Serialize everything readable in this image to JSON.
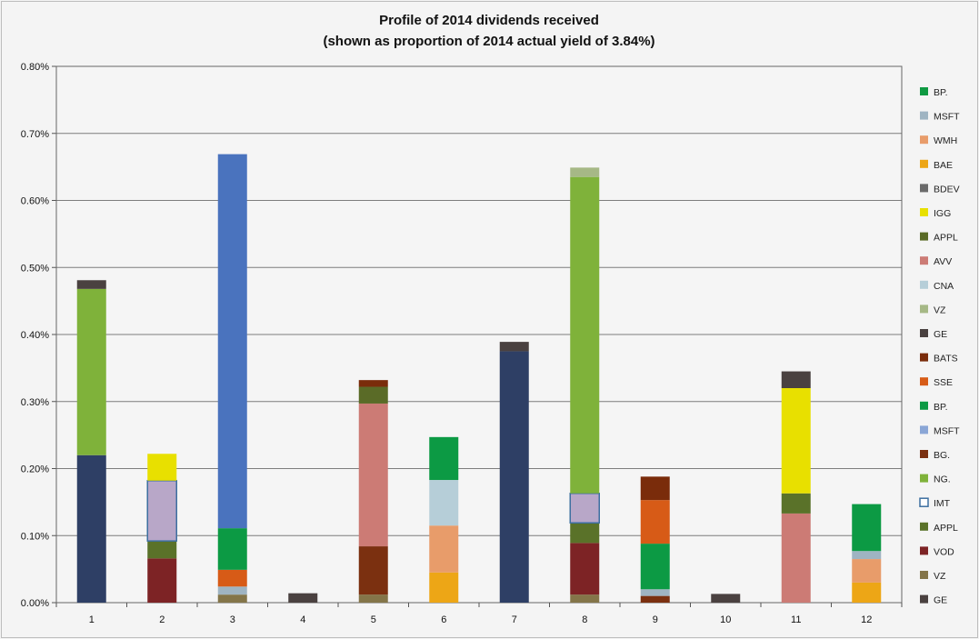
{
  "chart_data": {
    "type": "bar",
    "stacked": true,
    "title": "Profile of 2014 dividends received",
    "subtitle": "(shown as proportion of 2014 actual yield of  3.84%)",
    "xlabel": "",
    "ylabel": "",
    "ylim": [
      0,
      0.8
    ],
    "y_ticks": [
      "0.00%",
      "0.10%",
      "0.20%",
      "0.30%",
      "0.40%",
      "0.50%",
      "0.60%",
      "0.70%",
      "0.80%"
    ],
    "categories": [
      "1",
      "2",
      "3",
      "4",
      "5",
      "6",
      "7",
      "8",
      "9",
      "10",
      "11",
      "12"
    ],
    "grid": "horizontal",
    "legend_position": "right",
    "series": [
      {
        "name": "GE",
        "color": "#4a4140",
        "values": [
          0.013,
          0,
          0,
          0.014,
          0,
          0,
          0.014,
          0,
          0,
          0.013,
          0.025,
          0
        ]
      },
      {
        "name": "VZ",
        "color": "#847549",
        "values": [
          0,
          0,
          0.012,
          0,
          0.012,
          0,
          0,
          0.012,
          0,
          0,
          0,
          0
        ]
      },
      {
        "name": "VOD",
        "color": "#7d2325",
        "values": [
          0,
          0.066,
          0,
          0,
          0,
          0,
          0,
          0.077,
          0,
          0,
          0,
          0
        ]
      },
      {
        "name": "APPL",
        "color": "#5a7229",
        "values": [
          0,
          0.026,
          0,
          0,
          0,
          0,
          0,
          0.03,
          0,
          0,
          0.03,
          0
        ]
      },
      {
        "name": "IMT",
        "color": "#b8a7c8",
        "values": [
          0,
          0.09,
          0,
          0,
          0,
          0,
          0,
          0.044,
          0,
          0,
          0,
          0
        ]
      },
      {
        "name": "NG.",
        "color": "#7fb23a",
        "values": [
          0.248,
          0,
          0,
          0,
          0,
          0,
          0,
          0.472,
          0,
          0,
          0,
          0
        ]
      },
      {
        "name": "BG.",
        "color": "#7b3010",
        "values": [
          0,
          0,
          0,
          0,
          0.072,
          0,
          0,
          0,
          0.01,
          0,
          0,
          0
        ]
      },
      {
        "name": "MSFT",
        "color": "#4a73be",
        "values": [
          0,
          0,
          0.558,
          0,
          0,
          0,
          0,
          0,
          0,
          0,
          0,
          0
        ]
      },
      {
        "name": "BP.",
        "color": "#0c9a44",
        "values": [
          0,
          0,
          0.062,
          0,
          0,
          0.064,
          0,
          0,
          0.068,
          0,
          0,
          0.07
        ]
      },
      {
        "name": "SSE",
        "color": "#d75b17",
        "values": [
          0,
          0,
          0.025,
          0,
          0,
          0,
          0,
          0,
          0.065,
          0,
          0,
          0
        ]
      },
      {
        "name": "BATS",
        "color": "#7a2c0b",
        "values": [
          0,
          0,
          0,
          0,
          0.01,
          0,
          0,
          0,
          0.035,
          0,
          0,
          0
        ]
      },
      {
        "name": "GE",
        "color": "#2e3f65",
        "values": [
          0.22,
          0,
          0,
          0,
          0,
          0,
          0.375,
          0,
          0,
          0,
          0,
          0
        ]
      },
      {
        "name": "VZ",
        "color": "#a6b886",
        "values": [
          0,
          0,
          0,
          0,
          0,
          0,
          0,
          0.014,
          0,
          0,
          0,
          0
        ]
      },
      {
        "name": "CNA",
        "color": "#b6ced8",
        "values": [
          0,
          0,
          0,
          0,
          0,
          0.068,
          0,
          0,
          0,
          0,
          0,
          0
        ]
      },
      {
        "name": "AVV",
        "color": "#cc7b75",
        "values": [
          0,
          0,
          0,
          0,
          0.213,
          0,
          0,
          0,
          0,
          0,
          0.133,
          0
        ]
      },
      {
        "name": "APPL",
        "color": "#5a6b27",
        "values": [
          0,
          0,
          0,
          0,
          0.025,
          0,
          0,
          0,
          0,
          0,
          0,
          0
        ]
      },
      {
        "name": "IGG",
        "color": "#e8e000",
        "values": [
          0,
          0.04,
          0,
          0,
          0,
          0,
          0,
          0,
          0,
          0,
          0.157,
          0
        ]
      },
      {
        "name": "BDEV",
        "color": "#6b6b6b",
        "values": [
          0,
          0,
          0,
          0,
          0,
          0,
          0,
          0,
          0,
          0,
          0.025,
          0
        ]
      },
      {
        "name": "BAE",
        "color": "#eda616",
        "values": [
          0,
          0,
          0,
          0,
          0,
          0.045,
          0,
          0,
          0,
          0,
          0,
          0.03
        ]
      },
      {
        "name": "WMH",
        "color": "#e89c6a",
        "values": [
          0,
          0,
          0,
          0,
          0,
          0.07,
          0,
          0,
          0,
          0,
          0,
          0.035
        ]
      },
      {
        "name": "MSFT",
        "color": "#9fb4c2",
        "values": [
          0,
          0,
          0.012,
          0,
          0,
          0,
          0,
          0,
          0.01,
          0,
          0,
          0.012
        ]
      },
      {
        "name": "BP.",
        "color": "#0f9a42",
        "values": [
          0,
          0,
          0,
          0,
          0,
          0,
          0,
          0,
          0,
          0,
          0,
          0
        ]
      }
    ],
    "stack_order": [
      [
        11,
        5,
        0
      ],
      [
        2,
        3,
        4,
        16
      ],
      [
        1,
        0,
        20,
        9,
        8,
        7
      ],
      [
        0
      ],
      [
        1,
        6,
        14,
        15,
        10
      ],
      [
        18,
        19,
        13,
        4,
        8
      ],
      [
        11,
        1,
        0
      ],
      [
        1,
        2,
        3,
        4,
        5,
        12
      ],
      [
        6,
        20,
        8,
        9,
        10
      ],
      [
        0
      ],
      [
        13,
        14,
        3,
        16,
        0
      ],
      [
        18,
        19,
        20,
        8
      ]
    ],
    "legend": [
      {
        "name": "BP.",
        "color": "#0f9a42"
      },
      {
        "name": "MSFT",
        "color": "#9fb4c2"
      },
      {
        "name": "WMH",
        "color": "#e89c6a"
      },
      {
        "name": "BAE",
        "color": "#eda616"
      },
      {
        "name": "BDEV",
        "color": "#6b6b6b"
      },
      {
        "name": "IGG",
        "color": "#e8e000"
      },
      {
        "name": "APPL",
        "color": "#5a6b27"
      },
      {
        "name": "AVV",
        "color": "#cc7b75"
      },
      {
        "name": "CNA",
        "color": "#b6ced8"
      },
      {
        "name": "VZ",
        "color": "#a6b886"
      },
      {
        "name": "GE",
        "color": "#4a4140"
      },
      {
        "name": "BATS",
        "color": "#7a2c0b"
      },
      {
        "name": "SSE",
        "color": "#d75b17"
      },
      {
        "name": "BP.",
        "color": "#0c9a44"
      },
      {
        "name": "MSFT",
        "color": "#8aa6d6"
      },
      {
        "name": "BG.",
        "color": "#7b3010"
      },
      {
        "name": "NG.",
        "color": "#7fb23a"
      },
      {
        "name": "IMT",
        "color": "#ffffff",
        "outline": "#3d6fa0"
      },
      {
        "name": "APPL",
        "color": "#5a7229"
      },
      {
        "name": "VOD",
        "color": "#7d2325"
      },
      {
        "name": "VZ",
        "color": "#847549"
      },
      {
        "name": "GE",
        "color": "#4a4140"
      }
    ]
  }
}
